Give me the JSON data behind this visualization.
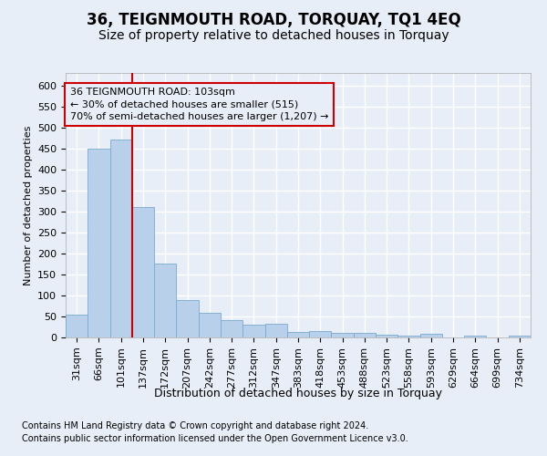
{
  "title1": "36, TEIGNMOUTH ROAD, TORQUAY, TQ1 4EQ",
  "title2": "Size of property relative to detached houses in Torquay",
  "xlabel": "Distribution of detached houses by size in Torquay",
  "ylabel": "Number of detached properties",
  "categories": [
    "31sqm",
    "66sqm",
    "101sqm",
    "137sqm",
    "172sqm",
    "207sqm",
    "242sqm",
    "277sqm",
    "312sqm",
    "347sqm",
    "383sqm",
    "418sqm",
    "453sqm",
    "488sqm",
    "523sqm",
    "558sqm",
    "593sqm",
    "629sqm",
    "664sqm",
    "699sqm",
    "734sqm"
  ],
  "values": [
    55,
    450,
    472,
    311,
    176,
    88,
    58,
    42,
    30,
    32,
    14,
    15,
    10,
    10,
    6,
    5,
    9,
    0,
    5,
    1,
    5
  ],
  "bar_color": "#b8d0ea",
  "bar_edge_color": "#7aaad0",
  "vline_color": "#cc0000",
  "annotation_line1": "36 TEIGNMOUTH ROAD: 103sqm",
  "annotation_line2": "← 30% of detached houses are smaller (515)",
  "annotation_line3": "70% of semi-detached houses are larger (1,207) →",
  "ylim_max": 630,
  "yticks": [
    0,
    50,
    100,
    150,
    200,
    250,
    300,
    350,
    400,
    450,
    500,
    550,
    600
  ],
  "footnote1": "Contains HM Land Registry data © Crown copyright and database right 2024.",
  "footnote2": "Contains public sector information licensed under the Open Government Licence v3.0.",
  "bg_color": "#e8eef8",
  "grid_color": "#ffffff",
  "title1_fontsize": 12,
  "title2_fontsize": 10,
  "xlabel_fontsize": 9,
  "ylabel_fontsize": 8,
  "tick_fontsize": 8,
  "footnote_fontsize": 7
}
